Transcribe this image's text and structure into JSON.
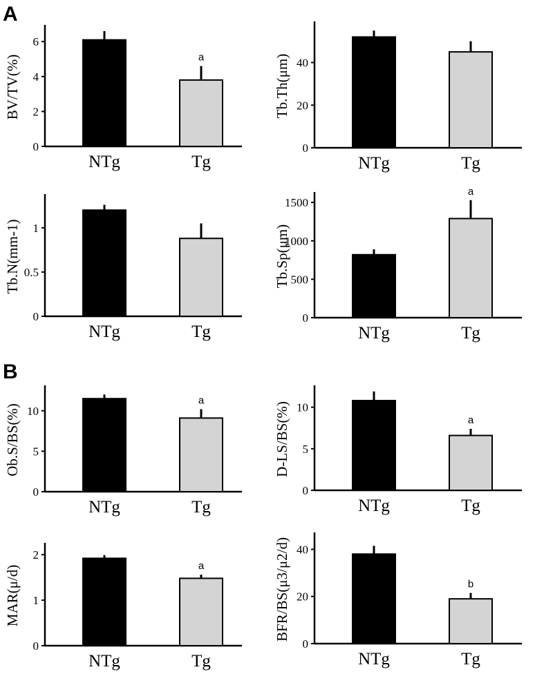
{
  "panel_labels": [
    "A",
    "B"
  ],
  "colors": {
    "ntg": "#000000",
    "tg": "#d4d4d4",
    "axis": "#000000"
  },
  "chart_data": [
    {
      "type": "bar",
      "panel": "A",
      "ylabel": "BV/TV(%)",
      "categories": [
        "NTg",
        "Tg"
      ],
      "values": [
        6.1,
        3.8
      ],
      "errors": [
        0.5,
        0.8
      ],
      "significance": [
        "",
        "a"
      ],
      "ylim": [
        0,
        6.8
      ],
      "yticks": [
        "0",
        "2",
        "4",
        "6"
      ],
      "yticks_values": [
        0,
        2,
        4,
        6
      ],
      "grid": false
    },
    {
      "type": "bar",
      "panel": "A",
      "ylabel": "Tb.Th(μm)",
      "categories": [
        "NTg",
        "Tg"
      ],
      "values": [
        52,
        45
      ],
      "errors": [
        3,
        5
      ],
      "significance": [
        "",
        ""
      ],
      "ylim": [
        0,
        58
      ],
      "yticks": [
        "0",
        "20",
        "40"
      ],
      "yticks_values": [
        0,
        20,
        40
      ],
      "grid": false
    },
    {
      "type": "bar",
      "panel": "A",
      "ylabel": "Tb.N(mm-1)",
      "categories": [
        "NTg",
        "Tg"
      ],
      "values": [
        1.2,
        0.88
      ],
      "errors": [
        0.06,
        0.17
      ],
      "significance": [
        "",
        ""
      ],
      "ylim": [
        0,
        1.35
      ],
      "yticks": [
        "0",
        "0.5",
        "1"
      ],
      "yticks_values": [
        0,
        0.5,
        1
      ],
      "grid": false
    },
    {
      "type": "bar",
      "panel": "A",
      "ylabel": "Tb.Sp(μm)",
      "categories": [
        "NTg",
        "Tg"
      ],
      "values": [
        820,
        1290
      ],
      "errors": [
        70,
        240
      ],
      "significance": [
        "",
        "a"
      ],
      "ylim": [
        0,
        1600
      ],
      "yticks": [
        "0",
        "500",
        "1000",
        "1500"
      ],
      "yticks_values": [
        0,
        500,
        1000,
        1500
      ],
      "grid": false
    },
    {
      "type": "bar",
      "panel": "B",
      "ylabel": "Ob.S/BS(%)",
      "categories": [
        "NTg",
        "Tg"
      ],
      "values": [
        11.5,
        9.1
      ],
      "errors": [
        0.5,
        1.1
      ],
      "significance": [
        "",
        "a"
      ],
      "ylim": [
        0,
        12.8
      ],
      "yticks": [
        "0",
        "5",
        "10"
      ],
      "yticks_values": [
        0,
        5,
        10
      ],
      "grid": false
    },
    {
      "type": "bar",
      "panel": "B",
      "ylabel": "D-LS/BS(%)",
      "categories": [
        "NTg",
        "Tg"
      ],
      "values": [
        10.8,
        6.6
      ],
      "errors": [
        1.1,
        0.8
      ],
      "significance": [
        "",
        "a"
      ],
      "ylim": [
        0,
        12.3
      ],
      "yticks": [
        "0",
        "5",
        "10"
      ],
      "yticks_values": [
        0,
        5,
        10
      ],
      "grid": false
    },
    {
      "type": "bar",
      "panel": "B",
      "ylabel": "MAR(μ/d)",
      "categories": [
        "NTg",
        "Tg"
      ],
      "values": [
        1.92,
        1.48
      ],
      "errors": [
        0.07,
        0.08
      ],
      "significance": [
        "",
        "a"
      ],
      "ylim": [
        0,
        2.2
      ],
      "yticks": [
        "0",
        "1",
        "2"
      ],
      "yticks_values": [
        0,
        1,
        2
      ],
      "grid": false
    },
    {
      "type": "bar",
      "panel": "B",
      "ylabel": "BFR/BS(μ3/μ2/d)",
      "categories": [
        "NTg",
        "Tg"
      ],
      "values": [
        38,
        19
      ],
      "errors": [
        3.5,
        2.5
      ],
      "significance": [
        "",
        "b"
      ],
      "ylim": [
        0,
        46
      ],
      "yticks": [
        "0",
        "20",
        "40"
      ],
      "yticks_values": [
        0,
        20,
        40
      ],
      "grid": false
    }
  ]
}
